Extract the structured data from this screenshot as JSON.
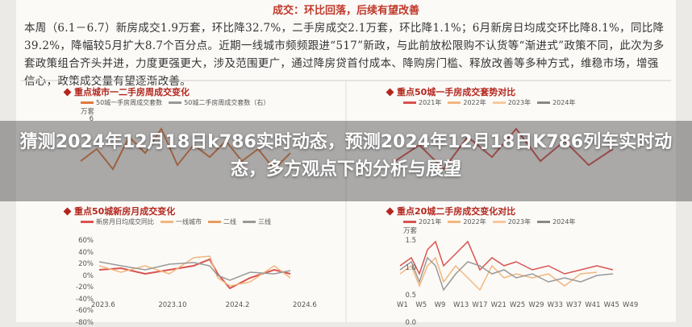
{
  "header": {
    "title": "成交：环比回落，后续有望改善"
  },
  "paragraph": "本周（6.1－6.7）新房成交1.9万套，环比降32.7%，二手房成交2.1万套，环比降1.1%；6月新房日均成交环比降8.1%，同比降39.2%，降幅较5月扩大8.7个百分点。近期一线城市频频跟进“517”新政，与此前放松限购不认货等“渐进式”政策不同，此次为多套政策组合齐头并进，力度更强更大，涉及范围更广，通过降房贷首付成本、降购房门槛、释放改善等多种方式，维稳市场，增强信心，政策成交量有望逐渐改善。",
  "charts": [
    {
      "title": "重点城市一二手房周成交变化",
      "unit": "万套",
      "legend": [
        "50城一手房周成交套数",
        "50城二手房周成交套数（右）"
      ],
      "yticks": [
        "6"
      ]
    },
    {
      "title": "重点50城一手房成交套势对比",
      "legend": [
        "2021年",
        "2022年",
        "2023年",
        "2024年"
      ]
    },
    {
      "title": "重点50城新房月成交变化",
      "legend": [
        "新房月日均成交同比",
        "一线城市",
        "二线",
        "三线"
      ],
      "yticks": [
        "60%",
        "40%",
        "20%",
        "0%",
        "-20%",
        "-40%",
        "-60%",
        "-80%"
      ],
      "xticks": [
        "2023.6",
        "2023.10",
        "2024.2",
        "2024.6"
      ]
    },
    {
      "title": "重点20城二手房成交变化对比",
      "legend": [
        "2021年",
        "2022年",
        "2023年",
        "2024年"
      ],
      "unit": "万套",
      "yticks": [
        "1.5",
        "1.0",
        "0.5",
        "0.0"
      ],
      "xticks": [
        "W1",
        "W5",
        "W9",
        "W13",
        "W17",
        "W21",
        "W25",
        "W29",
        "W33",
        "W37",
        "W41",
        "W45",
        "W49"
      ]
    }
  ],
  "overlay": {
    "title": "猜测2024年12月18日k786实时动态，预测2024年12月18日K786列车实时动态，多方观点下的分析与展望"
  }
}
